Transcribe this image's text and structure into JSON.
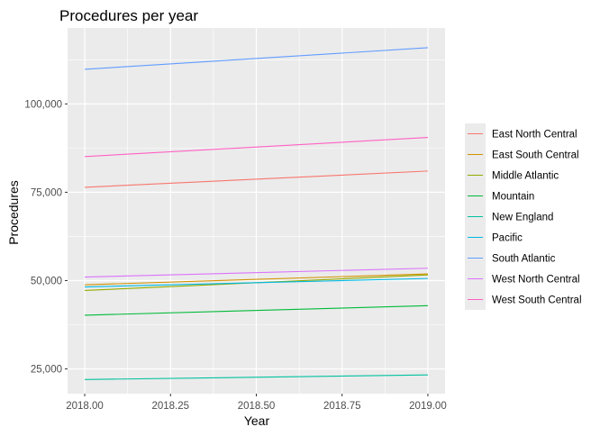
{
  "chart_data": {
    "type": "line",
    "title": "Procedures per year",
    "xlabel": "Year",
    "ylabel": "Procedures",
    "x": [
      2018,
      2019
    ],
    "xlim": [
      2017.95,
      2019.05
    ],
    "ylim": [
      18000,
      121500
    ],
    "x_ticks": [
      2018.0,
      2018.25,
      2018.5,
      2018.75,
      2019.0
    ],
    "x_tick_labels": [
      "2018.00",
      "2018.25",
      "2018.50",
      "2018.75",
      "2019.00"
    ],
    "y_ticks": [
      25000,
      50000,
      75000,
      100000
    ],
    "y_tick_labels": [
      "25,000",
      "50,000",
      "75,000",
      "100,000"
    ],
    "grid": true,
    "legend_position": "right",
    "panel_color": "#ebebeb",
    "series": [
      {
        "name": "East North Central",
        "color": "#f8766d",
        "values": [
          76400,
          81000
        ]
      },
      {
        "name": "East South Central",
        "color": "#d39200",
        "values": [
          48800,
          51900
        ]
      },
      {
        "name": "Middle Atlantic",
        "color": "#93aa00",
        "values": [
          47200,
          51600
        ]
      },
      {
        "name": "Mountain",
        "color": "#00ba38",
        "values": [
          40200,
          42900
        ]
      },
      {
        "name": "New England",
        "color": "#00c19f",
        "values": [
          22000,
          23300
        ]
      },
      {
        "name": "Pacific",
        "color": "#00b9e3",
        "values": [
          48200,
          50600
        ]
      },
      {
        "name": "South Atlantic",
        "color": "#619cff",
        "values": [
          109800,
          115900
        ]
      },
      {
        "name": "West North Central",
        "color": "#db72fb",
        "values": [
          51000,
          53500
        ]
      },
      {
        "name": "West South Central",
        "color": "#ff61c3",
        "values": [
          85100,
          90500
        ]
      }
    ]
  }
}
